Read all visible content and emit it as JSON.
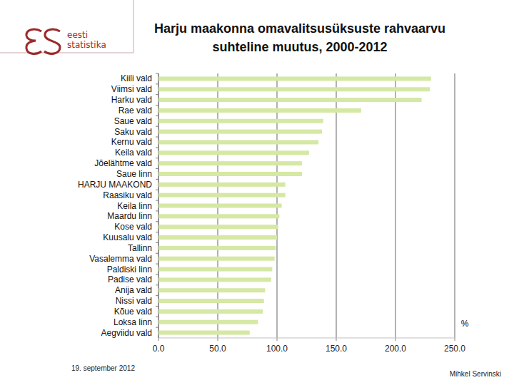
{
  "chart_data": {
    "type": "bar",
    "orientation": "horizontal",
    "title": "Harju maakonna omavalitsusüksuste rahvaarvu suhteline muutus, 2000-2012",
    "xlabel": "%",
    "categories": [
      "Kiili vald",
      "Viimsi vald",
      "Harku vald",
      "Rae vald",
      "Saue vald",
      "Saku vald",
      "Kernu vald",
      "Keila vald",
      "Jõelähtme vald",
      "Saue linn",
      "HARJU MAAKOND",
      "Raasiku vald",
      "Keila linn",
      "Maardu linn",
      "Kose vald",
      "Kuusalu vald",
      "Tallinn",
      "Vasalemma vald",
      "Paldiski linn",
      "Padise vald",
      "Anija vald",
      "Nissi vald",
      "Kõue vald",
      "Loksa linn",
      "Aegviidu vald"
    ],
    "values": [
      230,
      229,
      222,
      171,
      139,
      138,
      135,
      127,
      121,
      121,
      107,
      107,
      104,
      102,
      101,
      100,
      99,
      98,
      96,
      95,
      90,
      89,
      88,
      84,
      77
    ],
    "color": "#d5e8a4",
    "xlim": [
      0,
      250
    ],
    "xticks": [
      {
        "value": 0,
        "label": "0.0"
      },
      {
        "value": 50,
        "label": "50.0"
      },
      {
        "value": 100,
        "label": "100.0"
      },
      {
        "value": 150,
        "label": "150.0"
      },
      {
        "value": 200,
        "label": "200.0"
      },
      {
        "value": 250,
        "label": "250.0"
      }
    ],
    "grid": true
  },
  "logo": {
    "line1": "eesti",
    "line2": "statistika"
  },
  "footer": {
    "date": "19. september 2012",
    "author": "Mihkel Servinski"
  }
}
